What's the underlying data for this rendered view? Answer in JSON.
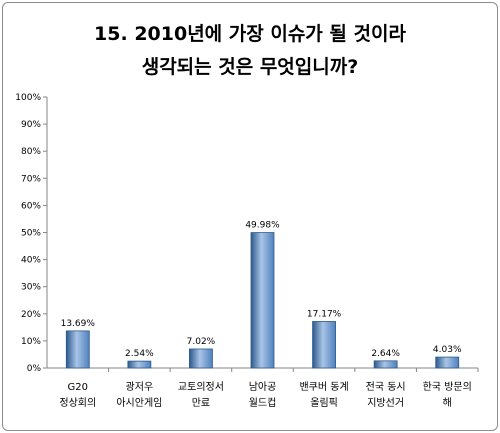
{
  "chart_data": {
    "type": "bar",
    "title": [
      "15. 2010년에 가장 이슈가 될 것이라",
      "생각되는 것은 무엇입니까?"
    ],
    "categories": [
      [
        "G20",
        "정상회의"
      ],
      [
        "광저우",
        "아시안게임"
      ],
      [
        "교토의정서",
        "만료"
      ],
      [
        "남아공",
        "월드컵"
      ],
      [
        "밴쿠버 동계",
        "올림픽"
      ],
      [
        "전국 동시",
        "지방선거"
      ],
      [
        "한국 방문의",
        "해"
      ]
    ],
    "values": [
      13.69,
      2.54,
      7.02,
      49.98,
      17.17,
      2.64,
      4.03
    ],
    "data_labels": [
      "13.69%",
      "2.54%",
      "7.02%",
      "49.98%",
      "17.17%",
      "2.64%",
      "4.03%"
    ],
    "ylim": [
      0,
      100
    ],
    "yticks": [
      "0%",
      "10%",
      "20%",
      "30%",
      "40%",
      "50%",
      "60%",
      "70%",
      "80%",
      "90%",
      "100%"
    ],
    "grid": false,
    "colors": {
      "bar": "#4f81bd",
      "bar_dark": "#2c5a8c",
      "bar_light": "#a9c4e6",
      "axis": "#868686"
    }
  }
}
